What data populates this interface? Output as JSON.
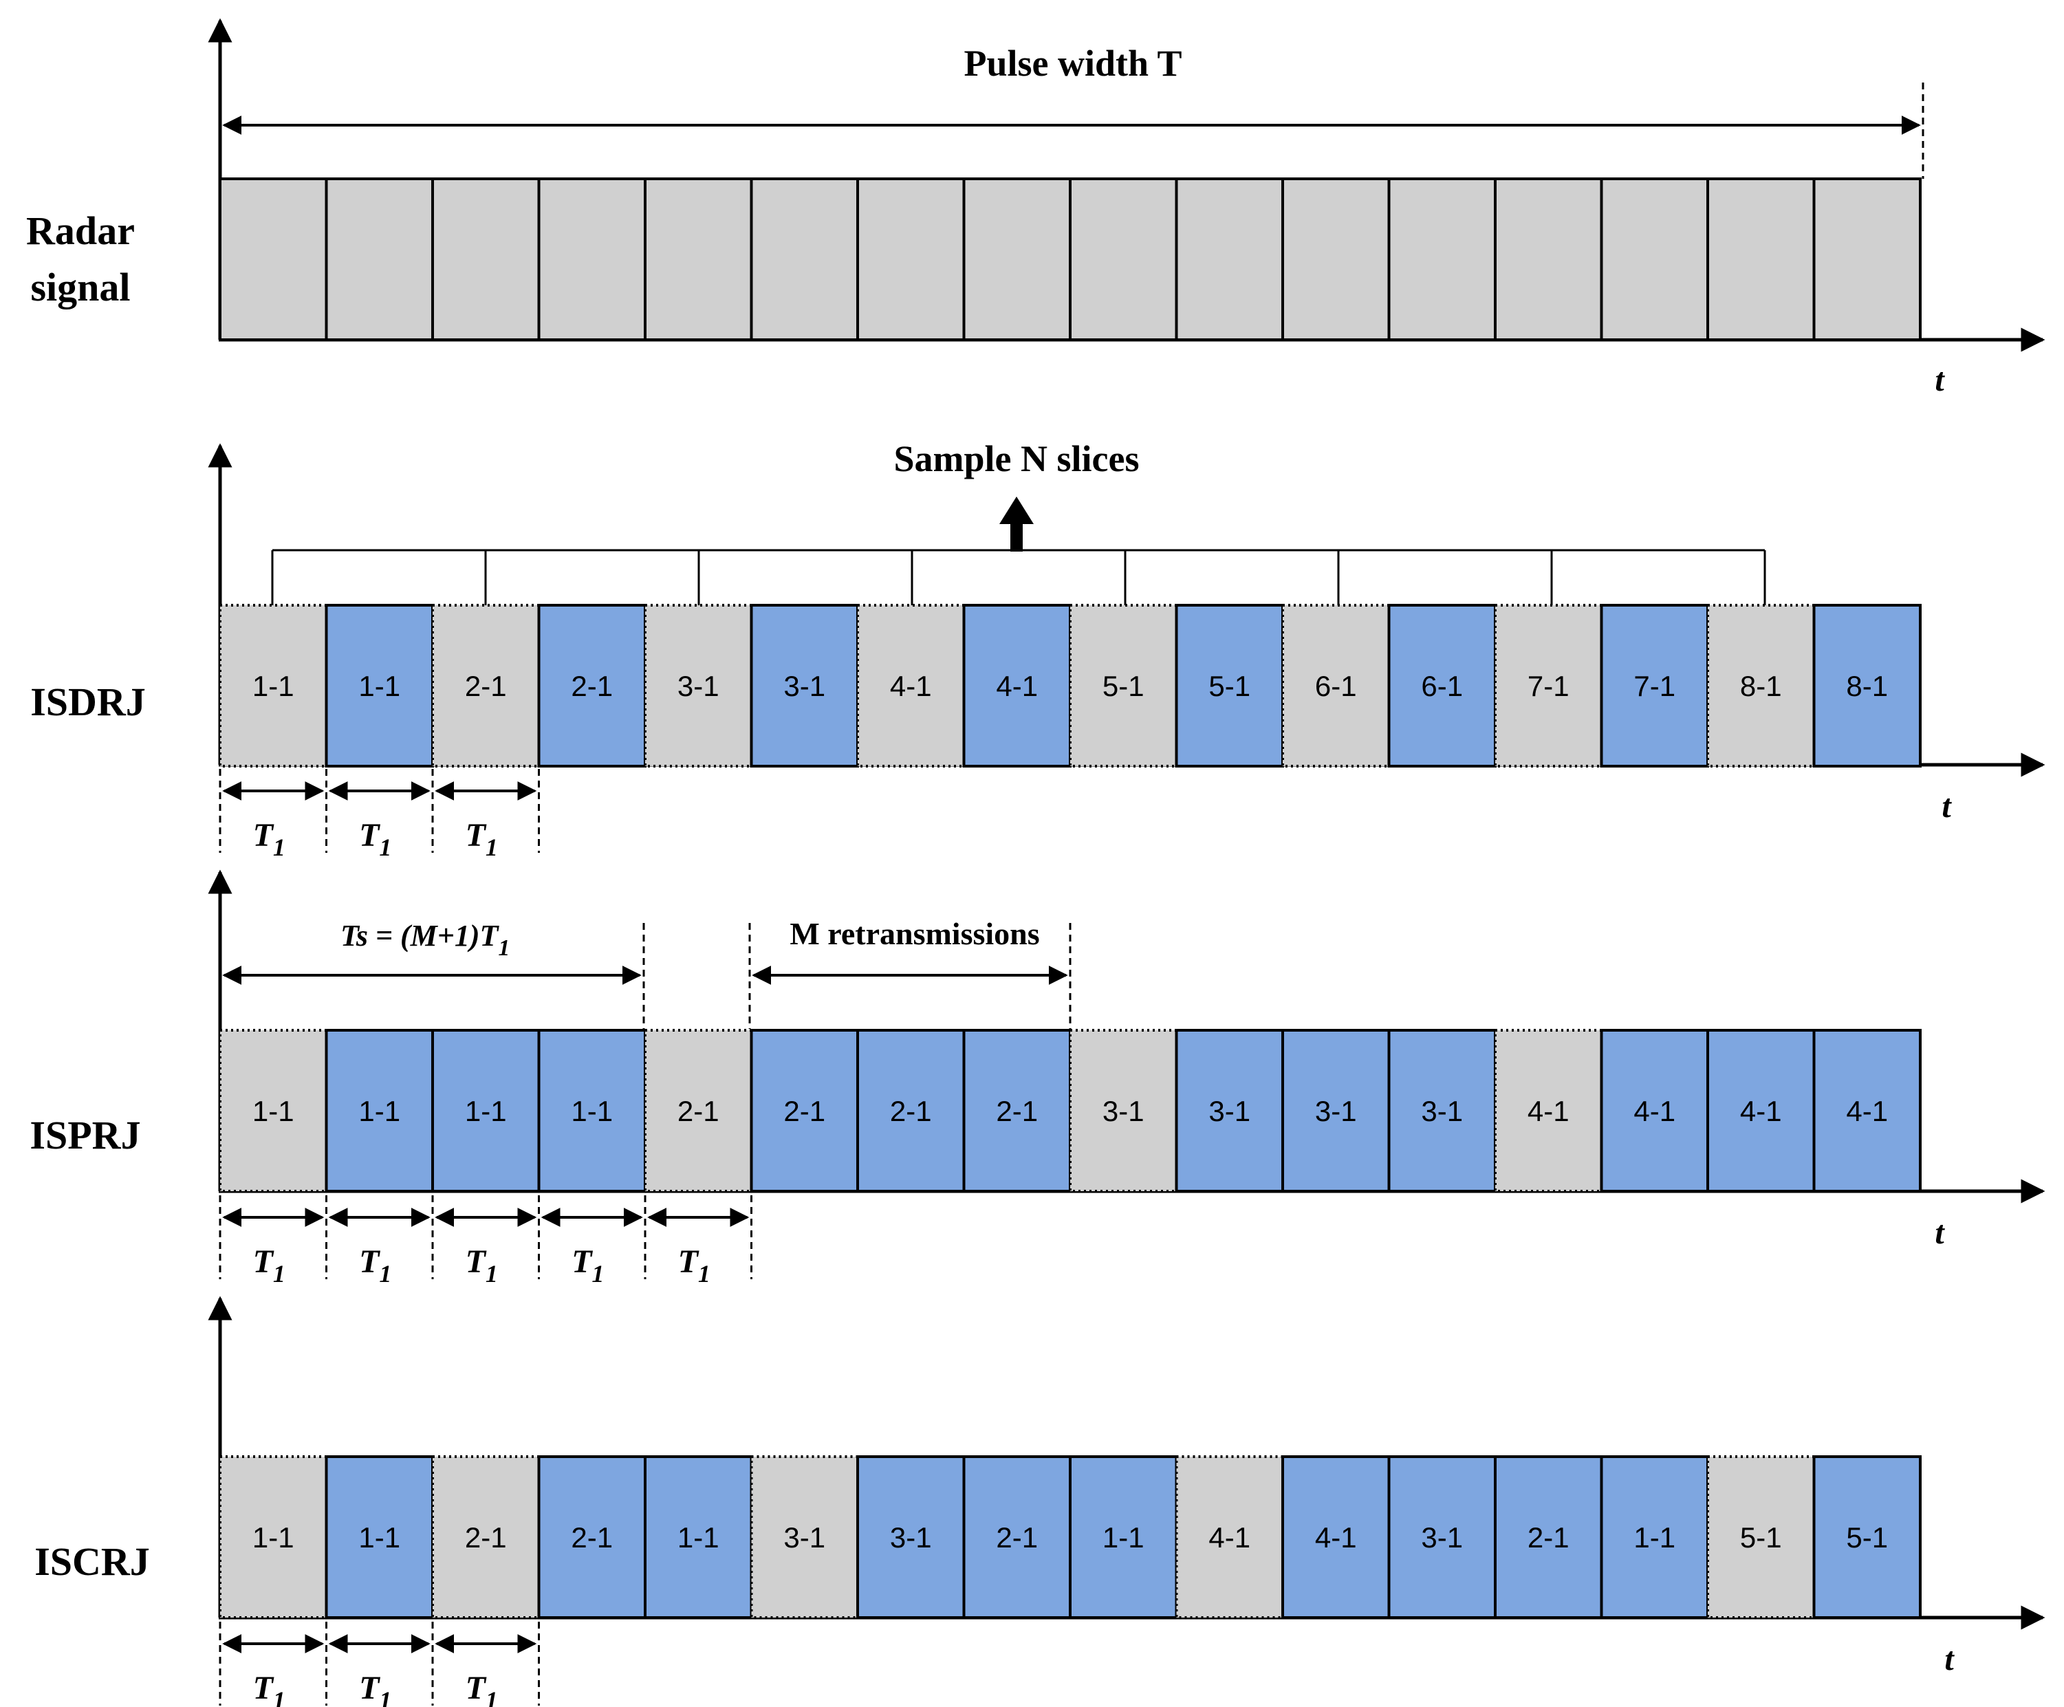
{
  "title": "Pulse width T",
  "sample_label": "Sample N slices",
  "ts_label": "Ts = (M+1)T",
  "ts_sub": "1",
  "m_label": "M retransmissions",
  "t_symbol": "T",
  "t_sub": "1",
  "time_axis_label": "t",
  "rows": [
    {
      "label_lines": [
        "Radar",
        "signal"
      ],
      "segments": [
        {
          "text": "",
          "color": "gray"
        },
        {
          "text": "",
          "color": "gray"
        },
        {
          "text": "",
          "color": "gray"
        },
        {
          "text": "",
          "color": "gray"
        },
        {
          "text": "",
          "color": "gray"
        },
        {
          "text": "",
          "color": "gray"
        },
        {
          "text": "",
          "color": "gray"
        },
        {
          "text": "",
          "color": "gray"
        },
        {
          "text": "",
          "color": "gray"
        },
        {
          "text": "",
          "color": "gray"
        },
        {
          "text": "",
          "color": "gray"
        },
        {
          "text": "",
          "color": "gray"
        },
        {
          "text": "",
          "color": "gray"
        },
        {
          "text": "",
          "color": "gray"
        },
        {
          "text": "",
          "color": "gray"
        },
        {
          "text": "",
          "color": "gray"
        }
      ]
    },
    {
      "label_lines": [
        "ISDRJ"
      ],
      "segments": [
        {
          "text": "1-1",
          "color": "gray"
        },
        {
          "text": "1-1",
          "color": "blue"
        },
        {
          "text": "2-1",
          "color": "gray"
        },
        {
          "text": "2-1",
          "color": "blue"
        },
        {
          "text": "3-1",
          "color": "gray"
        },
        {
          "text": "3-1",
          "color": "blue"
        },
        {
          "text": "4-1",
          "color": "gray"
        },
        {
          "text": "4-1",
          "color": "blue"
        },
        {
          "text": "5-1",
          "color": "gray"
        },
        {
          "text": "5-1",
          "color": "blue"
        },
        {
          "text": "6-1",
          "color": "gray"
        },
        {
          "text": "6-1",
          "color": "blue"
        },
        {
          "text": "7-1",
          "color": "gray"
        },
        {
          "text": "7-1",
          "color": "blue"
        },
        {
          "text": "8-1",
          "color": "gray"
        },
        {
          "text": "8-1",
          "color": "blue"
        }
      ]
    },
    {
      "label_lines": [
        "ISPRJ"
      ],
      "segments": [
        {
          "text": "1-1",
          "color": "gray"
        },
        {
          "text": "1-1",
          "color": "blue"
        },
        {
          "text": "1-1",
          "color": "blue"
        },
        {
          "text": "1-1",
          "color": "blue"
        },
        {
          "text": "2-1",
          "color": "gray"
        },
        {
          "text": "2-1",
          "color": "blue"
        },
        {
          "text": "2-1",
          "color": "blue"
        },
        {
          "text": "2-1",
          "color": "blue"
        },
        {
          "text": "3-1",
          "color": "gray"
        },
        {
          "text": "3-1",
          "color": "blue"
        },
        {
          "text": "3-1",
          "color": "blue"
        },
        {
          "text": "3-1",
          "color": "blue"
        },
        {
          "text": "4-1",
          "color": "gray"
        },
        {
          "text": "4-1",
          "color": "blue"
        },
        {
          "text": "4-1",
          "color": "blue"
        },
        {
          "text": "4-1",
          "color": "blue"
        }
      ]
    },
    {
      "label_lines": [
        "ISCRJ"
      ],
      "segments": [
        {
          "text": "1-1",
          "color": "gray"
        },
        {
          "text": "1-1",
          "color": "blue"
        },
        {
          "text": "2-1",
          "color": "gray"
        },
        {
          "text": "2-1",
          "color": "blue"
        },
        {
          "text": "1-1",
          "color": "blue"
        },
        {
          "text": "3-1",
          "color": "gray"
        },
        {
          "text": "3-1",
          "color": "blue"
        },
        {
          "text": "2-1",
          "color": "blue"
        },
        {
          "text": "1-1",
          "color": "blue"
        },
        {
          "text": "4-1",
          "color": "gray"
        },
        {
          "text": "4-1",
          "color": "blue"
        },
        {
          "text": "3-1",
          "color": "blue"
        },
        {
          "text": "2-1",
          "color": "blue"
        },
        {
          "text": "1-1",
          "color": "blue"
        },
        {
          "text": "5-1",
          "color": "gray"
        },
        {
          "text": "5-1",
          "color": "blue"
        }
      ]
    }
  ],
  "colors": {
    "gray": "#d0d0d0",
    "blue": "#7ea6e0"
  }
}
